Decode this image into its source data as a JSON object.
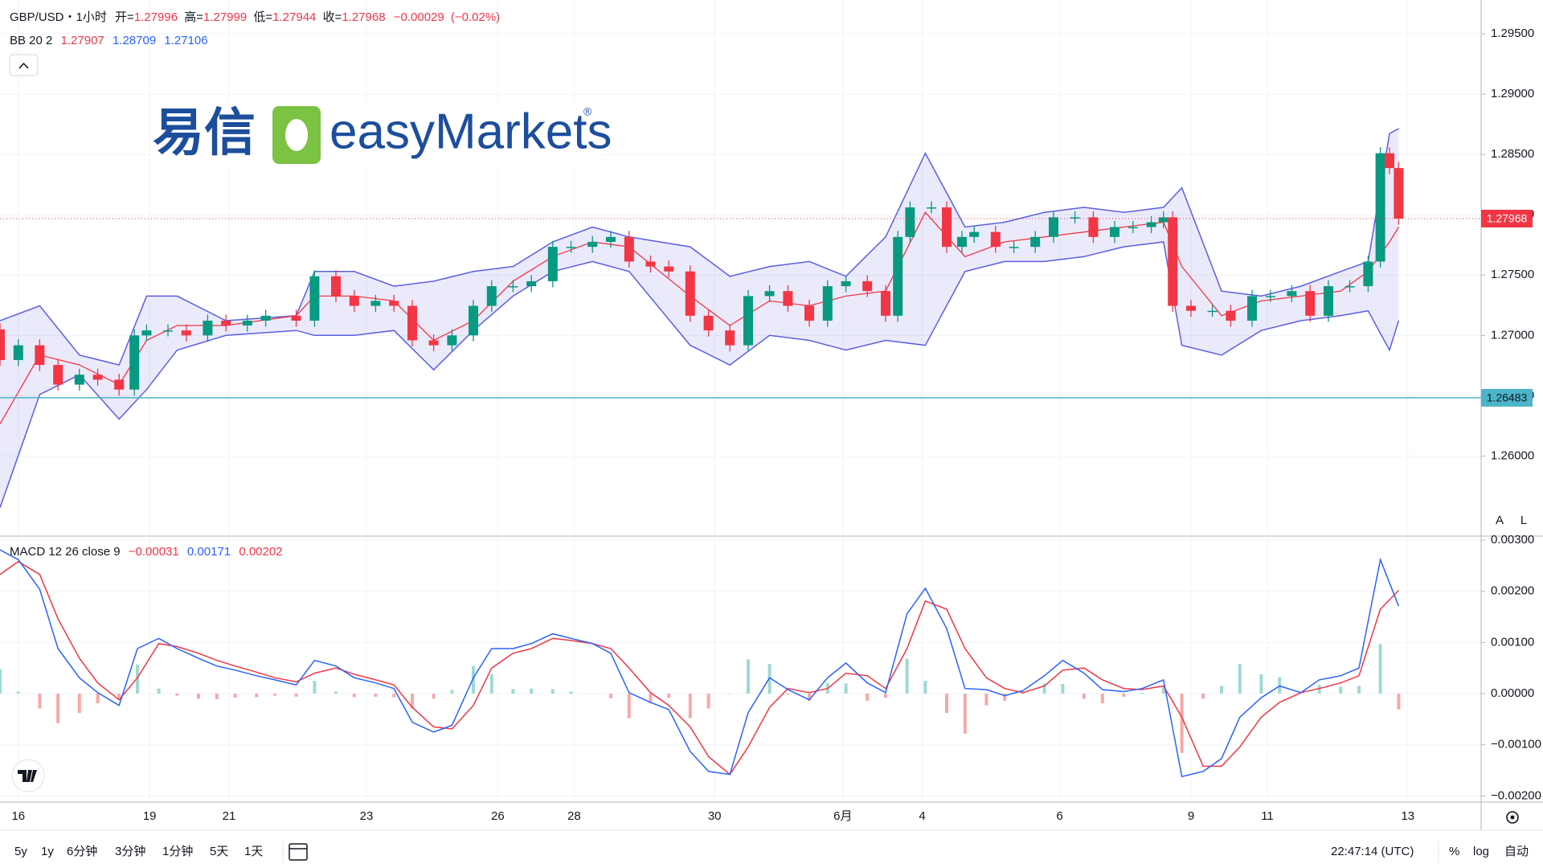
{
  "chart_data": {
    "type": "candlestick",
    "symbol": "GBP/USD",
    "separator": "・",
    "interval": "1小时",
    "ohlc_legend": {
      "open_label": "开=",
      "open": 1.27996,
      "high_label": "高=",
      "high": 1.27999,
      "low_label": "低=",
      "low": 1.27944,
      "close_label": "收=",
      "close": 1.27968,
      "change": "−0.00029",
      "change_pct": "(−0.02%)"
    },
    "xlim": [
      0,
      485
    ],
    "xticks": [
      {
        "value": 6,
        "label": "16"
      },
      {
        "value": 49,
        "label": "19"
      },
      {
        "value": 75,
        "label": "21"
      },
      {
        "value": 120,
        "label": "23"
      },
      {
        "value": 163,
        "label": "26"
      },
      {
        "value": 188,
        "label": "28"
      },
      {
        "value": 234,
        "label": "30"
      },
      {
        "value": 276,
        "label": "6月"
      },
      {
        "value": 302,
        "label": "4"
      },
      {
        "value": 347,
        "label": "6"
      },
      {
        "value": 390,
        "label": "9"
      },
      {
        "value": 415,
        "label": "11"
      },
      {
        "value": 461,
        "label": "13"
      }
    ],
    "ylim": [
      1.2535,
      1.2978
    ],
    "yticks": [
      {
        "value": 1.26,
        "label": "1.26000"
      },
      {
        "value": 1.265,
        "label": "1.26500"
      },
      {
        "value": 1.27,
        "label": "1.27000"
      },
      {
        "value": 1.275,
        "label": "1.27500"
      },
      {
        "value": 1.28,
        "label": "1.28000"
      },
      {
        "value": 1.285,
        "label": "1.28500"
      },
      {
        "value": 1.29,
        "label": "1.29000"
      },
      {
        "value": 1.295,
        "label": "1.29500"
      }
    ],
    "grid": true,
    "last_price": 1.27968,
    "last_price_color": "#f23645",
    "level_line": 1.26483,
    "level_color": "#4bb4c8",
    "candles": {
      "up_color": "#089981",
      "down_color": "#f23645",
      "x": [
        0,
        6,
        13,
        19,
        26,
        32,
        39,
        44,
        48,
        55,
        61,
        68,
        74,
        81,
        87,
        97,
        103,
        110,
        116,
        123,
        129,
        135,
        142,
        148,
        155,
        161,
        168,
        174,
        181,
        187,
        194,
        200,
        206,
        213,
        219,
        226,
        232,
        239,
        245,
        252,
        258,
        265,
        271,
        277,
        284,
        290,
        294,
        298,
        305,
        310,
        315,
        319,
        326,
        332,
        339,
        345,
        352,
        358,
        365,
        371,
        377,
        381,
        384,
        390,
        397,
        403,
        410,
        416,
        423,
        429,
        435,
        442,
        448,
        452,
        455,
        458
      ],
      "open": [
        1.2705,
        1.26796,
        1.26918,
        1.26755,
        1.26592,
        1.26674,
        1.26633,
        1.26551,
        1.27,
        1.27041,
        1.27041,
        1.27,
        1.27122,
        1.27082,
        1.27122,
        1.27163,
        1.27122,
        1.2749,
        1.27326,
        1.27245,
        1.27286,
        1.27245,
        1.26959,
        1.26918,
        1.27,
        1.27245,
        1.27408,
        1.27408,
        1.27449,
        1.27734,
        1.27734,
        1.27775,
        1.27816,
        1.27612,
        1.27571,
        1.2753,
        1.27163,
        1.27041,
        1.26918,
        1.27326,
        1.27367,
        1.27245,
        1.27122,
        1.27408,
        1.27449,
        1.27367,
        1.27163,
        1.27816,
        1.28061,
        1.28061,
        1.27734,
        1.27816,
        1.27857,
        1.27734,
        1.27734,
        1.27816,
        1.27979,
        1.27979,
        1.27816,
        1.27898,
        1.27898,
        1.27938,
        1.27979,
        1.27245,
        1.27204,
        1.27204,
        1.27122,
        1.27326,
        1.27326,
        1.27367,
        1.27163,
        1.27408,
        1.27408,
        1.27612,
        1.2851,
        1.28387
      ],
      "high": [
        1.271,
        1.26968,
        1.26968,
        1.26805,
        1.26724,
        1.26724,
        1.26683,
        1.2705,
        1.27091,
        1.27091,
        1.27091,
        1.27172,
        1.27172,
        1.27172,
        1.27213,
        1.27213,
        1.2754,
        1.2754,
        1.27376,
        1.27336,
        1.27336,
        1.27295,
        1.27009,
        1.2705,
        1.27295,
        1.27458,
        1.27458,
        1.27499,
        1.27784,
        1.27784,
        1.27825,
        1.27866,
        1.27866,
        1.27662,
        1.27621,
        1.2758,
        1.27213,
        1.27091,
        1.27376,
        1.27417,
        1.27417,
        1.27295,
        1.27458,
        1.27499,
        1.27499,
        1.27417,
        1.27866,
        1.28111,
        1.28111,
        1.28111,
        1.27866,
        1.27907,
        1.27907,
        1.27784,
        1.27866,
        1.28029,
        1.28029,
        1.28029,
        1.27948,
        1.27948,
        1.27988,
        1.28029,
        1.28029,
        1.27295,
        1.27254,
        1.27254,
        1.27376,
        1.27376,
        1.27417,
        1.27417,
        1.27458,
        1.27458,
        1.27662,
        1.2856,
        1.2856,
        1.28437
      ],
      "low": [
        1.26746,
        1.26746,
        1.26705,
        1.26542,
        1.26542,
        1.26583,
        1.26501,
        1.26501,
        1.2695,
        1.26991,
        1.2695,
        1.2695,
        1.27032,
        1.27032,
        1.27072,
        1.27072,
        1.27072,
        1.27276,
        1.27195,
        1.27195,
        1.27195,
        1.26909,
        1.26868,
        1.26868,
        1.2695,
        1.27195,
        1.27358,
        1.27358,
        1.27399,
        1.27684,
        1.27684,
        1.27725,
        1.27562,
        1.27521,
        1.2748,
        1.27113,
        1.26991,
        1.26868,
        1.26868,
        1.27276,
        1.27195,
        1.27072,
        1.27072,
        1.27358,
        1.27317,
        1.27113,
        1.27113,
        1.27766,
        1.28011,
        1.27684,
        1.27684,
        1.27766,
        1.27684,
        1.27684,
        1.27684,
        1.27766,
        1.27929,
        1.27766,
        1.27766,
        1.27848,
        1.27848,
        1.27888,
        1.27195,
        1.27154,
        1.27154,
        1.27072,
        1.27072,
        1.27276,
        1.27276,
        1.27113,
        1.27113,
        1.27358,
        1.27358,
        1.27562,
        1.28337,
        1.27918
      ],
      "close": [
        1.26796,
        1.26918,
        1.26755,
        1.26592,
        1.26674,
        1.26633,
        1.26551,
        1.27,
        1.27041,
        1.27041,
        1.27,
        1.27122,
        1.27082,
        1.27122,
        1.27163,
        1.27122,
        1.2749,
        1.27326,
        1.27245,
        1.27286,
        1.27245,
        1.26959,
        1.26918,
        1.27,
        1.27245,
        1.27408,
        1.27408,
        1.27449,
        1.27734,
        1.27734,
        1.27775,
        1.27816,
        1.27612,
        1.27571,
        1.2753,
        1.27163,
        1.27041,
        1.26918,
        1.27326,
        1.27367,
        1.27245,
        1.27122,
        1.27408,
        1.27449,
        1.27367,
        1.27163,
        1.27816,
        1.28061,
        1.28061,
        1.27734,
        1.27816,
        1.27857,
        1.27734,
        1.27734,
        1.27816,
        1.27979,
        1.27979,
        1.27816,
        1.27898,
        1.27898,
        1.27938,
        1.27979,
        1.27245,
        1.27204,
        1.27204,
        1.27122,
        1.27326,
        1.27326,
        1.27367,
        1.27163,
        1.27408,
        1.27408,
        1.27612,
        1.2851,
        1.28387,
        1.27968
      ]
    },
    "bb": {
      "name": "BB 20 2",
      "legend_values": [
        1.27907,
        1.28709,
        1.27106
      ],
      "band_color": "#5b5fe0",
      "middle_color": "#f23645",
      "x": [
        0,
        13,
        26,
        39,
        48,
        58,
        74,
        97,
        103,
        116,
        129,
        142,
        155,
        168,
        181,
        194,
        206,
        226,
        239,
        252,
        265,
        277,
        290,
        303,
        316,
        329,
        342,
        355,
        368,
        381,
        387,
        400,
        413,
        426,
        439,
        448,
        455,
        458
      ],
      "upper": [
        1.27122,
        1.27245,
        1.26837,
        1.26755,
        1.27326,
        1.27326,
        1.27122,
        1.27163,
        1.2753,
        1.2753,
        1.27408,
        1.27449,
        1.2753,
        1.27571,
        1.27775,
        1.27898,
        1.27816,
        1.27734,
        1.2749,
        1.27571,
        1.27612,
        1.2749,
        1.27816,
        1.2851,
        1.27898,
        1.27938,
        1.2802,
        1.28061,
        1.2802,
        1.28061,
        1.28224,
        1.27367,
        1.27326,
        1.27408,
        1.2753,
        1.27612,
        1.28673,
        1.28714
      ],
      "middle": [
        1.26266,
        1.26837,
        1.26755,
        1.26592,
        1.26959,
        1.27082,
        1.27082,
        1.27163,
        1.27326,
        1.27326,
        1.27286,
        1.26959,
        1.27122,
        1.27449,
        1.27653,
        1.27775,
        1.27734,
        1.27326,
        1.27082,
        1.27286,
        1.27245,
        1.27326,
        1.27367,
        1.2802,
        1.27653,
        1.27775,
        1.27816,
        1.27857,
        1.27898,
        1.27938,
        1.27571,
        1.27163,
        1.27286,
        1.27326,
        1.27367,
        1.2753,
        1.27775,
        1.27898
      ],
      "lower": [
        1.25572,
        1.2651,
        1.26674,
        1.26306,
        1.26551,
        1.26878,
        1.27,
        1.27041,
        1.27,
        1.27,
        1.27041,
        1.26714,
        1.27041,
        1.27326,
        1.2753,
        1.27612,
        1.2753,
        1.26918,
        1.26755,
        1.27,
        1.26959,
        1.26878,
        1.26959,
        1.26918,
        1.2753,
        1.27612,
        1.27612,
        1.27653,
        1.27734,
        1.27775,
        1.26918,
        1.26837,
        1.27041,
        1.27122,
        1.27163,
        1.27204,
        1.26878,
        1.27122
      ]
    },
    "macd": {
      "name": "MACD 12 26 close 9",
      "legend_values": [
        "−0.00031",
        0.00171,
        0.00202
      ],
      "macd_color": "#2962ff",
      "signal_color": "#f23645",
      "hist_up_color": "#9fd9d2",
      "hist_down_color": "#f7a9a7",
      "ylim": [
        -0.00212,
        0.00308
      ],
      "yticks": [
        {
          "value": -0.002,
          "label": "−0.00200"
        },
        {
          "value": -0.001,
          "label": "−0.00100"
        },
        {
          "value": 0,
          "label": "0.00000"
        },
        {
          "value": 0.001,
          "label": "0.00100"
        },
        {
          "value": 0.002,
          "label": "0.00200"
        },
        {
          "value": 0.003,
          "label": "0.00300"
        }
      ],
      "x": [
        0,
        6,
        13,
        19,
        26,
        32,
        39,
        45,
        52,
        58,
        65,
        71,
        77,
        84,
        90,
        97,
        103,
        110,
        116,
        123,
        129,
        135,
        142,
        148,
        155,
        161,
        168,
        174,
        181,
        187,
        194,
        200,
        206,
        213,
        219,
        226,
        232,
        239,
        245,
        252,
        258,
        265,
        271,
        277,
        284,
        290,
        297,
        303,
        310,
        316,
        323,
        329,
        335,
        342,
        348,
        355,
        361,
        368,
        374,
        381,
        387,
        394,
        400,
        406,
        413,
        419,
        426,
        432,
        439,
        445,
        452,
        458
      ],
      "macd": [
        0.00281,
        0.00262,
        0.00204,
        0.00088,
        0.00031,
        2e-05,
        -0.00023,
        0.00088,
        0.00108,
        0.00088,
        0.00069,
        0.00054,
        0.00046,
        0.00035,
        0.00027,
        0.00017,
        0.00065,
        0.00054,
        0.00031,
        0.00021,
        0.0001,
        -0.00056,
        -0.00075,
        -0.00062,
        0.00031,
        0.00088,
        0.00088,
        0.00098,
        0.00117,
        0.00108,
        0.00098,
        0.00079,
        2e-05,
        -0.00017,
        -0.00031,
        -0.00113,
        -0.00152,
        -0.00158,
        -0.00037,
        0.00031,
        8e-05,
        -0.00012,
        0.00031,
        0.0006,
        0.00021,
        2e-05,
        0.00156,
        0.00206,
        0.00127,
        0.0001,
        8e-05,
        -4e-05,
        6e-05,
        0.00035,
        0.00065,
        0.0004,
        8e-05,
        4e-05,
        0.0001,
        0.00027,
        -0.00162,
        -0.00152,
        -0.00127,
        -0.00046,
        -8e-05,
        0.00015,
        2e-05,
        0.00027,
        0.00035,
        0.0005,
        0.00262,
        0.00171
      ],
      "signal": [
        0.00233,
        0.00258,
        0.00233,
        0.00146,
        0.00069,
        0.00021,
        -0.00012,
        0.00031,
        0.00098,
        0.00092,
        0.00079,
        0.00065,
        0.00054,
        0.00042,
        0.00031,
        0.00023,
        0.0004,
        0.0005,
        0.00038,
        0.00027,
        0.00017,
        -0.00027,
        -0.00065,
        -0.00069,
        -0.00023,
        0.0005,
        0.00079,
        0.00088,
        0.00108,
        0.00104,
        0.00098,
        0.00088,
        0.0005,
        2e-05,
        -0.00023,
        -0.00065,
        -0.00123,
        -0.00158,
        -0.00104,
        -0.00027,
        0.0001,
        2e-05,
        0.0001,
        0.0004,
        0.00035,
        0.0001,
        0.00088,
        0.00181,
        0.00165,
        0.00088,
        0.00031,
        0.0001,
        2e-05,
        0.00015,
        0.00046,
        0.0005,
        0.00027,
        0.0001,
        8e-05,
        0.00015,
        -0.00046,
        -0.00142,
        -0.00142,
        -0.00104,
        -0.00046,
        -0.00017,
        2e-05,
        0.0001,
        0.00021,
        0.00035,
        0.00165,
        0.00202
      ],
      "histogram": [
        0.00048,
        4e-05,
        -0.00029,
        -0.00058,
        -0.00038,
        -0.00019,
        -0.00011,
        0.00057,
        0.0001,
        -4e-05,
        -0.0001,
        -0.00011,
        -8e-05,
        -7e-05,
        -4e-05,
        -6e-05,
        0.00025,
        4e-05,
        -7e-05,
        -6e-05,
        -7e-05,
        -0.00029,
        -0.0001,
        7e-05,
        0.00054,
        0.00038,
        9e-05,
        0.0001,
        9e-05,
        4e-05,
        0,
        -9e-05,
        -0.00048,
        -0.00019,
        -8e-05,
        -0.00048,
        -0.00029,
        0,
        0.00067,
        0.00058,
        -2e-05,
        -0.00014,
        0.00021,
        0.0002,
        -0.00014,
        -8e-05,
        0.00068,
        0.00025,
        -0.00038,
        -0.00078,
        -0.00023,
        -0.00014,
        4e-05,
        0.0002,
        0.00019,
        -0.0001,
        -0.00019,
        -6e-05,
        2e-05,
        0.00012,
        -0.00116,
        -0.0001,
        0.00015,
        0.00058,
        0.00038,
        0.00032,
        0,
        0.00017,
        0.00014,
        0.00015,
        0.00097,
        -0.00031
      ]
    }
  },
  "logo": {
    "cn": "易信",
    "en": "easyMarkets",
    "mark": "®"
  },
  "scale_buttons": [
    "A",
    "L"
  ],
  "toolbar": {
    "ranges": [
      "5y",
      "1y",
      "6分钟",
      "3分钟",
      "1分钟",
      "5天",
      "1天"
    ],
    "clock": "22:47:14 (UTC)",
    "percent": "%",
    "log": "log",
    "auto": "自动"
  }
}
